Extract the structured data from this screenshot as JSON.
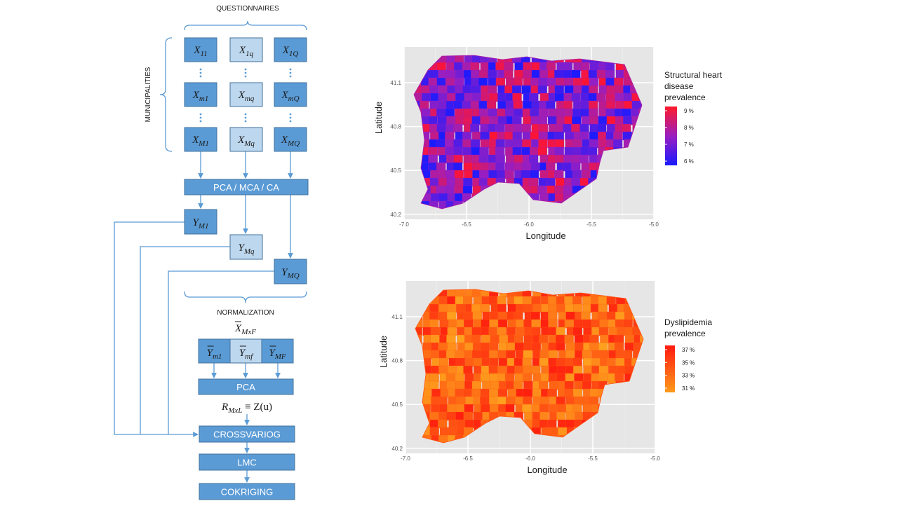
{
  "diagram": {
    "top_label": "QUESTIONNAIRES",
    "side_label": "MUNICIPALITIES",
    "matrix": [
      [
        {
          "base": "X",
          "sub": "11"
        },
        {
          "base": "X",
          "sub": "1q"
        },
        {
          "base": "X",
          "sub": "1Q"
        }
      ],
      [
        {
          "base": "X",
          "sub": "m1"
        },
        {
          "base": "X",
          "sub": "mq"
        },
        {
          "base": "X",
          "sub": "mQ"
        }
      ],
      [
        {
          "base": "X",
          "sub": "M1"
        },
        {
          "base": "X",
          "sub": "Mq"
        },
        {
          "base": "X",
          "sub": "MQ"
        }
      ]
    ],
    "pca_step": "PCA / MCA / CA",
    "scores": [
      {
        "base": "Y",
        "sub": "M1"
      },
      {
        "base": "Y",
        "sub": "Mq"
      },
      {
        "base": "Y",
        "sub": "MQ"
      }
    ],
    "normalization": "NORMALIZATION",
    "normalized_matrix": {
      "base": "X",
      "sub": "MxF"
    },
    "normalized_scores": [
      {
        "base": "Y",
        "sub": "m1"
      },
      {
        "base": "Y",
        "sub": "mf"
      },
      {
        "base": "Y",
        "sub": "MF"
      }
    ],
    "pca": "PCA",
    "result": {
      "base": "R",
      "sub": "MxL",
      "rest": " ≡ Z(u)"
    },
    "steps": [
      "CROSSVARIOG",
      "LMC",
      "COKRIGING"
    ]
  },
  "maps": [
    {
      "x_label": "Longitude",
      "y_label": "Latitude",
      "x_ticks": [
        "-7.0",
        "-6.5",
        "-6.0",
        "-5.5",
        "-5.0"
      ],
      "y_ticks": [
        "41.1",
        "40.8",
        "40.5",
        "40.2"
      ],
      "legend_title": [
        "Structural heart",
        "disease",
        "prevalence"
      ],
      "legend_labels": [
        "9 %",
        "8 %",
        "7 %",
        "6 %"
      ]
    },
    {
      "x_label": "Longitude",
      "y_label": "Latitude",
      "x_ticks": [
        "-7.0",
        "-6.5",
        "-6.0",
        "-5.5",
        "-5.0"
      ],
      "y_ticks": [
        "41.1",
        "40.8",
        "40.5",
        "40.2"
      ],
      "legend_title": [
        "Dyslipidemia",
        "prevalence"
      ],
      "legend_labels": [
        "37 %",
        "35 %",
        "33 %",
        "31 %"
      ]
    }
  ]
}
